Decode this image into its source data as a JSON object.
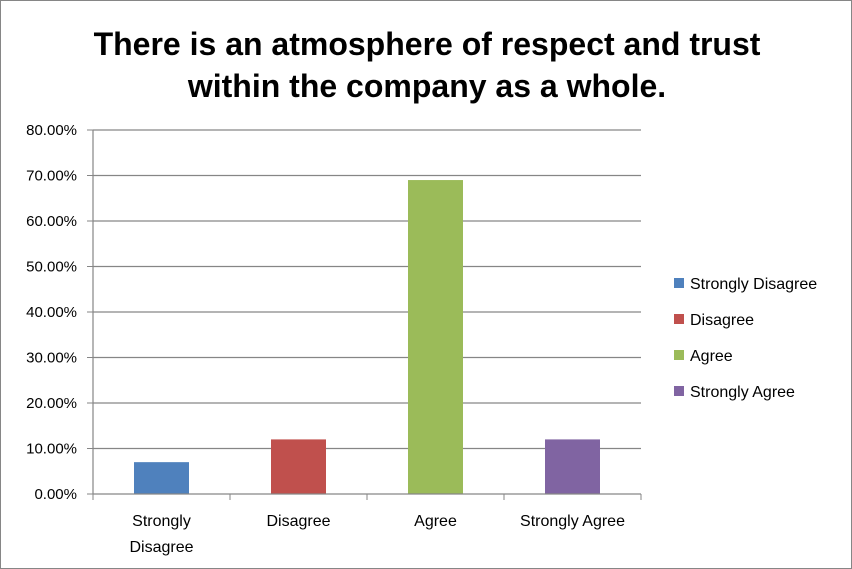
{
  "chart_data": {
    "type": "bar",
    "title_lines": [
      "There is an atmosphere of respect and trust",
      "within the company as a whole."
    ],
    "categories": [
      "Strongly Disagree",
      "Disagree",
      "Agree",
      "Strongly Agree"
    ],
    "category_label_lines": [
      [
        "Strongly",
        "Disagree"
      ],
      [
        "Disagree"
      ],
      [
        "Agree"
      ],
      [
        "Strongly Agree"
      ]
    ],
    "values": [
      0.07,
      0.12,
      0.69,
      0.12
    ],
    "colors": [
      "#4f81bd",
      "#c0504d",
      "#9bbb59",
      "#8064a2"
    ],
    "ylim": [
      0,
      0.8
    ],
    "yticks": [
      0,
      0.1,
      0.2,
      0.3,
      0.4,
      0.5,
      0.6,
      0.7,
      0.8
    ],
    "ytick_labels": [
      "0.00%",
      "10.00%",
      "20.00%",
      "30.00%",
      "40.00%",
      "50.00%",
      "60.00%",
      "70.00%",
      "80.00%"
    ],
    "legend": [
      "Strongly Disagree",
      "Disagree",
      "Agree",
      "Strongly Agree"
    ],
    "legend_position": "right",
    "grid": true,
    "xlabel": "",
    "ylabel": ""
  }
}
